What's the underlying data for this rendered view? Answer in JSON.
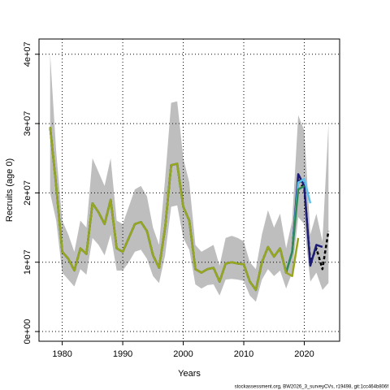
{
  "chart_data": {
    "type": "line",
    "xlabel": "Years",
    "ylabel": "Recruits (age 0)",
    "footer": "stockassessment.org, BW2026_3_surveyCVs, r19498, git:1cc464b806f",
    "x": [
      1978,
      1979,
      1980,
      1981,
      1982,
      1983,
      1984,
      1985,
      1986,
      1987,
      1988,
      1989,
      1990,
      1991,
      1992,
      1993,
      1994,
      1995,
      1996,
      1997,
      1998,
      1999,
      2000,
      2001,
      2002,
      2003,
      2004,
      2005,
      2006,
      2007,
      2008,
      2009,
      2010,
      2011,
      2012,
      2013,
      2014,
      2015,
      2016,
      2017,
      2018,
      2019,
      2020,
      2021,
      2022,
      2023,
      2024
    ],
    "band": {
      "color": "#bebebe",
      "upper": [
        40000000.0,
        26000000.0,
        16000000.0,
        14000000.0,
        11500000.0,
        16000000.0,
        15000000.0,
        25000000.0,
        23000000.0,
        21000000.0,
        25000000.0,
        16000000.0,
        15500000.0,
        18000000.0,
        20500000.0,
        21000000.0,
        19500000.0,
        15000000.0,
        12500000.0,
        22000000.0,
        33000000.0,
        33200000.0,
        25000000.0,
        21500000.0,
        12500000.0,
        11500000.0,
        12000000.0,
        12500000.0,
        9500000.0,
        13500000.0,
        13800000.0,
        13500000.0,
        13000000.0,
        10000000.0,
        9000000.0,
        14000000.0,
        17500000.0,
        15000000.0,
        17000000.0,
        12000000.0,
        16000000.0,
        31200000.0,
        29000000.0,
        14000000.0,
        17000000.0,
        13000000.0,
        30000000.0
      ],
      "lower": [
        20000000.0,
        16000000.0,
        8500000.0,
        7500000.0,
        6500000.0,
        9000000.0,
        8200000.0,
        13500000.0,
        12500000.0,
        11000000.0,
        14000000.0,
        8800000.0,
        8800000.0,
        10000000.0,
        11500000.0,
        11800000.0,
        10500000.0,
        8000000.0,
        7000000.0,
        11000000.0,
        18000000.0,
        18200000.0,
        13500000.0,
        11800000.0,
        6800000.0,
        6200000.0,
        6700000.0,
        6800000.0,
        5200000.0,
        7500000.0,
        7600000.0,
        7500000.0,
        7300000.0,
        5200000.0,
        4300000.0,
        7500000.0,
        9000000.0,
        8000000.0,
        8800000.0,
        6200000.0,
        8500000.0,
        16500000.0,
        15500000.0,
        7200000.0,
        8500000.0,
        6000000.0,
        7000000.0
      ]
    },
    "series": [
      {
        "color": "#000000",
        "dashed": true,
        "values": [
          29500000.0,
          21000000.0,
          11500000.0,
          10500000.0,
          8800000.0,
          12000000.0,
          11200000.0,
          18500000.0,
          17200000.0,
          15500000.0,
          19000000.0,
          12000000.0,
          11500000.0,
          13500000.0,
          15500000.0,
          15800000.0,
          14500000.0,
          11000000.0,
          9200000.0,
          15000000.0,
          24000000.0,
          24200000.0,
          18000000.0,
          16000000.0,
          9000000.0,
          8500000.0,
          9000000.0,
          9200000.0,
          7200000.0,
          9800000.0,
          10000000.0,
          9800000.0,
          9700000.0,
          7200000.0,
          6000000.0,
          10000000.0,
          12200000.0,
          10800000.0,
          12000000.0,
          8500000.0,
          11500000.0,
          22000000.0,
          20500000.0,
          10000000.0,
          12000000.0,
          9000000.0,
          14500000.0
        ]
      },
      {
        "color": "#1c1c78",
        "values": [
          29500000.0,
          21000000.0,
          11500000.0,
          10500000.0,
          8800000.0,
          12000000.0,
          11200000.0,
          18500000.0,
          17200000.0,
          15500000.0,
          19000000.0,
          12000000.0,
          11500000.0,
          13500000.0,
          15500000.0,
          15800000.0,
          14500000.0,
          11000000.0,
          9200000.0,
          15000000.0,
          24000000.0,
          24200000.0,
          18000000.0,
          16000000.0,
          9000000.0,
          8500000.0,
          9000000.0,
          9200000.0,
          7200000.0,
          9800000.0,
          10000000.0,
          9800000.0,
          9700000.0,
          7200000.0,
          6000000.0,
          10000000.0,
          12200000.0,
          10800000.0,
          12000000.0,
          8500000.0,
          11500000.0,
          22700000.0,
          21000000.0,
          9500000.0,
          12500000.0,
          12200000.0,
          null
        ]
      },
      {
        "color": "#5bc0eb",
        "values": [
          29500000.0,
          21000000.0,
          11500000.0,
          10500000.0,
          8800000.0,
          12000000.0,
          11200000.0,
          18500000.0,
          17200000.0,
          15500000.0,
          19000000.0,
          12000000.0,
          11500000.0,
          13500000.0,
          15500000.0,
          15800000.0,
          14500000.0,
          11000000.0,
          9200000.0,
          15000000.0,
          24000000.0,
          24200000.0,
          18000000.0,
          16000000.0,
          9000000.0,
          8500000.0,
          9000000.0,
          9200000.0,
          7200000.0,
          9800000.0,
          10000000.0,
          9800000.0,
          9700000.0,
          7200000.0,
          6000000.0,
          10000000.0,
          12200000.0,
          10800000.0,
          12000000.0,
          8500000.0,
          11500000.0,
          21500000.0,
          22000000.0,
          18500000.0,
          null,
          null,
          null
        ]
      },
      {
        "color": "#2e8b57",
        "values": [
          29500000.0,
          21000000.0,
          11500000.0,
          10500000.0,
          8800000.0,
          12000000.0,
          11200000.0,
          18500000.0,
          17200000.0,
          15500000.0,
          19000000.0,
          12000000.0,
          11500000.0,
          13500000.0,
          15500000.0,
          15800000.0,
          14500000.0,
          11000000.0,
          9200000.0,
          15000000.0,
          24000000.0,
          24200000.0,
          18000000.0,
          16000000.0,
          9000000.0,
          8500000.0,
          9000000.0,
          9200000.0,
          7200000.0,
          9800000.0,
          10000000.0,
          9800000.0,
          9700000.0,
          7200000.0,
          6000000.0,
          10000000.0,
          12200000.0,
          10800000.0,
          12000000.0,
          8500000.0,
          11500000.0,
          20500000.0,
          21000000.0,
          null,
          null,
          null,
          null
        ]
      },
      {
        "color": "#9aa51e",
        "values": [
          29500000.0,
          21000000.0,
          11500000.0,
          10500000.0,
          8800000.0,
          12000000.0,
          11200000.0,
          18500000.0,
          17200000.0,
          15500000.0,
          19000000.0,
          12000000.0,
          11500000.0,
          13500000.0,
          15500000.0,
          15800000.0,
          14500000.0,
          11000000.0,
          9200000.0,
          15000000.0,
          24000000.0,
          24200000.0,
          18000000.0,
          16000000.0,
          9000000.0,
          8500000.0,
          9000000.0,
          9200000.0,
          7200000.0,
          9800000.0,
          10000000.0,
          9800000.0,
          9700000.0,
          7200000.0,
          6000000.0,
          10000000.0,
          12200000.0,
          10800000.0,
          12000000.0,
          8500000.0,
          8000000.0,
          13500000.0,
          null,
          null,
          null,
          null,
          null
        ]
      }
    ],
    "xlim": [
      1976.16,
      2025.84
    ],
    "xticks": [
      1980,
      1990,
      2000,
      2010,
      2020
    ],
    "ylim": [
      -1400000,
      42200000
    ],
    "yticks": [
      {
        "value": 0,
        "label": "0e+00"
      },
      {
        "value": 10000000,
        "label": "1e+07"
      },
      {
        "value": 20000000,
        "label": "2e+07"
      },
      {
        "value": 30000000,
        "label": "3e+07"
      },
      {
        "value": 40000000,
        "label": "4e+07"
      }
    ],
    "grid": true
  }
}
